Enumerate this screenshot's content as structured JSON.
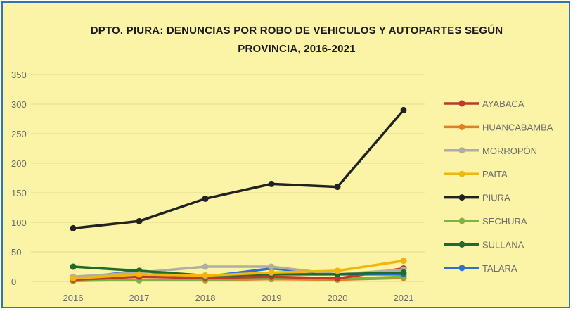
{
  "chart_data": {
    "type": "line",
    "title": [
      "DPTO. PIURA: DENUNCIAS POR ROBO DE VEHICULOS Y AUTOPARTES SEGÚN",
      "PROVINCIA, 2016-2021"
    ],
    "x": [
      "2016",
      "2017",
      "2018",
      "2019",
      "2020",
      "2021"
    ],
    "ylim": [
      0,
      350
    ],
    "yticks": [
      "0",
      "50",
      "100",
      "150",
      "200",
      "250",
      "300",
      "350"
    ],
    "grid": true,
    "legend_position": "right",
    "series": [
      {
        "name": "AYABACA",
        "color": "#c0392b",
        "values": [
          3,
          8,
          6,
          8,
          5,
          22
        ]
      },
      {
        "name": "HUANCABAMBA",
        "color": "#e67e22",
        "values": [
          1,
          3,
          2,
          4,
          3,
          6
        ]
      },
      {
        "name": "MORROPÓN",
        "color": "#b0aea2",
        "values": [
          8,
          15,
          25,
          25,
          12,
          20
        ]
      },
      {
        "name": "PAITA",
        "color": "#f2b705",
        "values": [
          5,
          12,
          10,
          15,
          18,
          35
        ]
      },
      {
        "name": "PIURA",
        "color": "#222222",
        "values": [
          90,
          102,
          140,
          165,
          160,
          290
        ]
      },
      {
        "name": "SECHURA",
        "color": "#7cb342",
        "values": [
          2,
          2,
          3,
          5,
          4,
          8
        ]
      },
      {
        "name": "SULLANA",
        "color": "#1e6b2a",
        "values": [
          25,
          18,
          10,
          12,
          12,
          15
        ]
      },
      {
        "name": "TALARA",
        "color": "#2e6fd0",
        "values": [
          5,
          18,
          8,
          22,
          12,
          12
        ]
      }
    ]
  }
}
